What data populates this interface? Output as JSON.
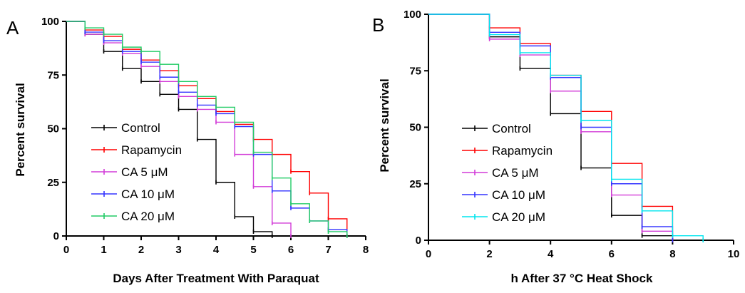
{
  "panels": [
    {
      "letter": "A",
      "xlabel": "Days After Treatment With Paraquat",
      "ylabel": "Percent survival"
    },
    {
      "letter": "B",
      "xlabel": "h After 37 °C Heat Shock",
      "ylabel": "Percent survival"
    }
  ],
  "chart_data": [
    {
      "type": "line",
      "subtype": "step (Kaplan-Meier survival)",
      "xlabel": "Days After Treatment With Paraquat",
      "ylabel": "Percent survival",
      "xlim": [
        0,
        8
      ],
      "ylim": [
        0,
        100
      ],
      "xticks": [
        "0",
        "1",
        "2",
        "3",
        "4",
        "5",
        "6",
        "7",
        "8"
      ],
      "yticks": [
        "0",
        "25",
        "50",
        "75",
        "100"
      ],
      "grid": false,
      "legend_position": "bottom-left",
      "series": [
        {
          "name": "Control",
          "color": "#000000",
          "x": [
            0,
            0.5,
            1,
            1.5,
            2,
            2.5,
            3,
            3.5,
            4,
            4.5,
            5,
            5.5
          ],
          "y": [
            100,
            94,
            86,
            78,
            72,
            66,
            59,
            45,
            25,
            9,
            2,
            0
          ]
        },
        {
          "name": "Rapamycin",
          "color": "#ff0000",
          "x": [
            0,
            0.5,
            1,
            1.5,
            2,
            2.5,
            3,
            3.5,
            4,
            4.5,
            5,
            5.5,
            6,
            6.5,
            7,
            7.5
          ],
          "y": [
            100,
            96,
            93,
            87,
            82,
            77,
            70,
            64,
            58,
            52,
            45,
            38,
            30,
            20,
            8,
            0
          ]
        },
        {
          "name": "CA 5 μM",
          "color": "#d23cd8",
          "x": [
            0,
            0.5,
            1,
            1.5,
            2,
            2.5,
            3,
            3.5,
            4,
            4.5,
            5,
            5.5,
            6
          ],
          "y": [
            100,
            94,
            90,
            85,
            79,
            72,
            65,
            59,
            53,
            38,
            23,
            6,
            0
          ]
        },
        {
          "name": "CA 10 μM",
          "color": "#3333ff",
          "x": [
            0,
            0.5,
            1,
            1.5,
            2,
            2.5,
            3,
            3.5,
            4,
            4.5,
            5,
            5.5,
            6,
            6.5,
            7,
            7.5
          ],
          "y": [
            100,
            95,
            91,
            86,
            81,
            74,
            67,
            61,
            57,
            51,
            38,
            21,
            13,
            7,
            3,
            0
          ]
        },
        {
          "name": "CA 20 μM",
          "color": "#22cc66",
          "x": [
            0,
            0.5,
            1,
            1.5,
            2,
            2.5,
            3,
            3.5,
            4,
            4.5,
            5,
            5.5,
            6,
            6.5,
            7,
            7.5
          ],
          "y": [
            100,
            97,
            94,
            88,
            86,
            80,
            72,
            65,
            60,
            53,
            39,
            27,
            15,
            7,
            2,
            0
          ]
        }
      ]
    },
    {
      "type": "line",
      "subtype": "step (Kaplan-Meier survival)",
      "xlabel": "h After 37 °C Heat Shock",
      "ylabel": "Percent survival",
      "xlim": [
        0,
        10
      ],
      "ylim": [
        0,
        100
      ],
      "xticks": [
        "0",
        "2",
        "4",
        "6",
        "8",
        "10"
      ],
      "yticks": [
        "0",
        "25",
        "50",
        "75",
        "100"
      ],
      "grid": false,
      "legend_position": "bottom-left",
      "series": [
        {
          "name": "Control",
          "color": "#000000",
          "x": [
            0,
            2,
            3,
            4,
            5,
            6,
            7,
            8
          ],
          "y": [
            100,
            90,
            76,
            56,
            32,
            11,
            2,
            0
          ]
        },
        {
          "name": "Rapamycin",
          "color": "#ff0000",
          "x": [
            0,
            2,
            3,
            4,
            5,
            6,
            7,
            8
          ],
          "y": [
            100,
            94,
            87,
            73,
            57,
            34,
            15,
            0
          ]
        },
        {
          "name": "CA 5 μM",
          "color": "#d23cd8",
          "x": [
            0,
            2,
            3,
            4,
            5,
            6,
            7,
            8
          ],
          "y": [
            100,
            89,
            82,
            66,
            48,
            20,
            4,
            0
          ]
        },
        {
          "name": "CA 10 μM",
          "color": "#3333ff",
          "x": [
            0,
            2,
            3,
            4,
            5,
            6,
            7,
            8
          ],
          "y": [
            100,
            92,
            86,
            72,
            50,
            25,
            6,
            0
          ]
        },
        {
          "name": "CA 20 μM",
          "color": "#00e5ee",
          "x": [
            0,
            2,
            3,
            4,
            5,
            6,
            7,
            8,
            9
          ],
          "y": [
            100,
            91,
            83,
            73,
            53,
            27,
            13,
            2,
            0
          ]
        }
      ]
    }
  ]
}
